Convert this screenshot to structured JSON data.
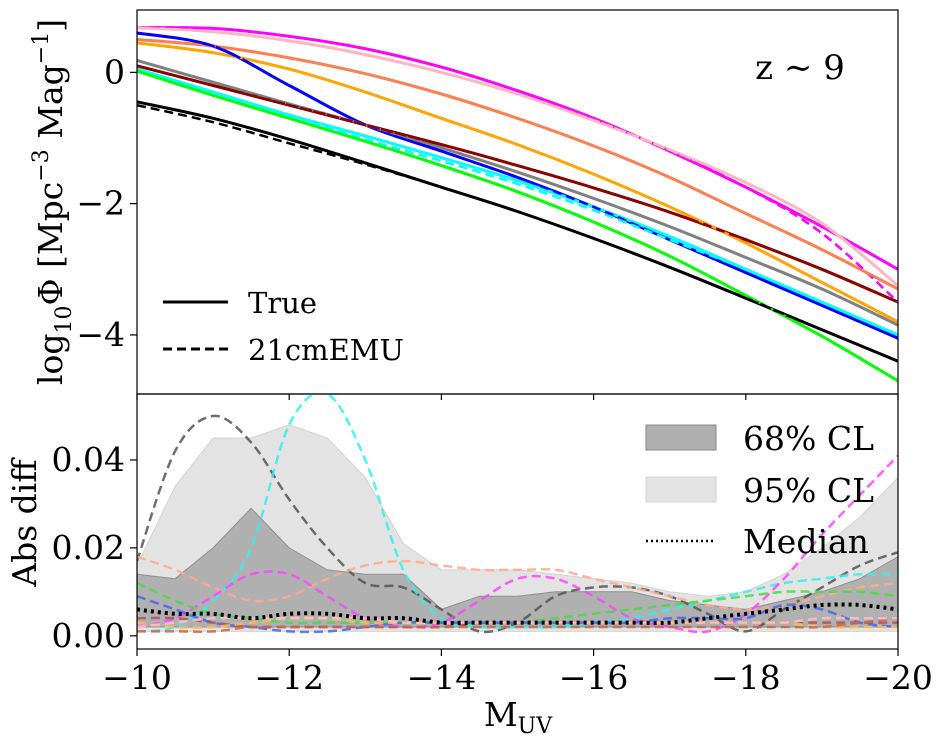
{
  "chart_data": [
    {
      "type": "line",
      "panel": "top",
      "annotation": "z ∼ 9",
      "ylabel": "log$_{10}\\Phi$ [Mpc$^{-3}$ Mag$^{-1}$]",
      "ylabel_parts": {
        "a": "log",
        "a_sub": "10",
        "b": "Φ [Mpc",
        "b_sup": "−3",
        "c": " Mag",
        "c_sup": "−1",
        "d": "]"
      },
      "xlim": [
        -10,
        -20
      ],
      "ylim": [
        -4.9,
        0.95
      ],
      "yticks": [
        0,
        -2,
        -4
      ],
      "ytick_labels": [
        "0",
        "−2",
        "−4"
      ],
      "legend": {
        "location": "lower left",
        "entries": [
          {
            "label": "True",
            "style": "solid"
          },
          {
            "label": "21cmEMU",
            "style": "dashed"
          }
        ]
      },
      "series": [
        {
          "color": "#ff00ff",
          "x": [
            -10,
            -11,
            -12,
            -13,
            -14,
            -15,
            -16,
            -17,
            -18,
            -19,
            -20
          ],
          "true": [
            0.68,
            0.67,
            0.55,
            0.36,
            0.08,
            -0.28,
            -0.7,
            -1.2,
            -1.75,
            -2.35,
            -3.0
          ],
          "emu": [
            0.68,
            0.67,
            0.55,
            0.36,
            0.08,
            -0.28,
            -0.7,
            -1.2,
            -1.75,
            -2.45,
            -3.5
          ]
        },
        {
          "color": "#ffb6c1",
          "x": [
            -10,
            -11,
            -12,
            -13,
            -14,
            -15,
            -16,
            -17,
            -18,
            -19,
            -20
          ],
          "true": [
            0.68,
            0.62,
            0.48,
            0.27,
            0.0,
            -0.33,
            -0.73,
            -1.18,
            -1.68,
            -2.3,
            -3.25
          ],
          "emu": [
            0.68,
            0.62,
            0.48,
            0.27,
            0.0,
            -0.33,
            -0.73,
            -1.18,
            -1.68,
            -2.3,
            -3.25
          ]
        },
        {
          "color": "#ff7f50",
          "x": [
            -10,
            -11,
            -12,
            -13,
            -14,
            -15,
            -16,
            -17,
            -18,
            -19,
            -20
          ],
          "true": [
            0.5,
            0.4,
            0.22,
            -0.02,
            -0.33,
            -0.7,
            -1.12,
            -1.6,
            -2.15,
            -2.7,
            -3.3
          ],
          "emu": [
            0.5,
            0.4,
            0.22,
            -0.02,
            -0.33,
            -0.7,
            -1.12,
            -1.6,
            -2.15,
            -2.7,
            -3.3
          ]
        },
        {
          "color": "#ffa500",
          "x": [
            -10,
            -11,
            -12,
            -13,
            -14,
            -15,
            -16,
            -17,
            -18,
            -19,
            -20
          ],
          "true": [
            0.45,
            0.3,
            0.05,
            -0.3,
            -0.7,
            -1.1,
            -1.55,
            -2.05,
            -2.6,
            -3.2,
            -3.8
          ],
          "emu": [
            0.45,
            0.3,
            0.05,
            -0.3,
            -0.7,
            -1.1,
            -1.55,
            -2.05,
            -2.6,
            -3.2,
            -3.8
          ]
        },
        {
          "color": "#0000ff",
          "x": [
            -10,
            -11,
            -12,
            -13,
            -14,
            -15,
            -16,
            -17,
            -18,
            -19,
            -20
          ],
          "true": [
            0.6,
            0.4,
            -0.2,
            -0.8,
            -1.2,
            -1.6,
            -2.05,
            -2.55,
            -3.05,
            -3.55,
            -4.05
          ],
          "emu": [
            0.6,
            0.4,
            -0.2,
            -0.8,
            -1.2,
            -1.6,
            -2.05,
            -2.55,
            -3.05,
            -3.55,
            -4.05
          ]
        },
        {
          "color": "#00ffff",
          "x": [
            -10,
            -11,
            -12,
            -13,
            -14,
            -15,
            -16,
            -17,
            -18,
            -19,
            -20
          ],
          "true": [
            0.05,
            -0.3,
            -0.65,
            -0.97,
            -1.3,
            -1.65,
            -2.05,
            -2.5,
            -3.0,
            -3.5,
            -4.0
          ],
          "emu": [
            0.05,
            -0.3,
            -0.65,
            -1.02,
            -1.35,
            -1.7,
            -2.1,
            -2.55,
            -3.0,
            -3.5,
            -4.0
          ]
        },
        {
          "color": "#808080",
          "x": [
            -10,
            -11,
            -12,
            -13,
            -14,
            -15,
            -16,
            -17,
            -18,
            -19,
            -20
          ],
          "true": [
            0.18,
            -0.15,
            -0.48,
            -0.8,
            -1.15,
            -1.52,
            -1.92,
            -2.35,
            -2.82,
            -3.3,
            -3.85
          ],
          "emu": [
            0.18,
            -0.15,
            -0.48,
            -0.8,
            -1.15,
            -1.52,
            -1.92,
            -2.35,
            -2.82,
            -3.3,
            -3.85
          ]
        },
        {
          "color": "#8b0000",
          "x": [
            -10,
            -11,
            -12,
            -13,
            -14,
            -15,
            -16,
            -17,
            -18,
            -19,
            -20
          ],
          "true": [
            0.1,
            -0.2,
            -0.5,
            -0.8,
            -1.1,
            -1.42,
            -1.76,
            -2.13,
            -2.55,
            -3.0,
            -3.5
          ],
          "emu": [
            0.1,
            -0.2,
            -0.5,
            -0.8,
            -1.1,
            -1.42,
            -1.76,
            -2.13,
            -2.55,
            -3.0,
            -3.5
          ]
        },
        {
          "color": "#00ff00",
          "x": [
            -10,
            -11,
            -12,
            -13,
            -14,
            -15,
            -16,
            -17,
            -18,
            -19,
            -20
          ],
          "true": [
            0.02,
            -0.35,
            -0.7,
            -1.05,
            -1.42,
            -1.82,
            -2.28,
            -2.8,
            -3.4,
            -4.02,
            -4.7
          ],
          "emu": [
            0.02,
            -0.35,
            -0.7,
            -1.05,
            -1.42,
            -1.82,
            -2.28,
            -2.8,
            -3.4,
            -4.02,
            -4.7
          ]
        },
        {
          "color": "#000000",
          "x": [
            -10,
            -11,
            -12,
            -13,
            -14,
            -15,
            -16,
            -17,
            -18,
            -19,
            -20
          ],
          "true": [
            -0.45,
            -0.7,
            -1.02,
            -1.38,
            -1.75,
            -2.12,
            -2.53,
            -2.97,
            -3.44,
            -3.92,
            -4.4
          ],
          "emu": [
            -0.5,
            -0.76,
            -1.08,
            -1.4,
            -1.75,
            -2.12,
            -2.53,
            -2.97,
            -3.44,
            -3.92,
            -4.4
          ]
        }
      ]
    },
    {
      "type": "line",
      "panel": "bottom",
      "xlabel": "M",
      "xlabel_sub": "UV",
      "ylabel": "Abs diff",
      "xlim": [
        -10,
        -20
      ],
      "ylim": [
        -0.003,
        0.055
      ],
      "xticks": [
        -10,
        -12,
        -14,
        -16,
        -18,
        -20
      ],
      "xtick_labels": [
        "−10",
        "−12",
        "−14",
        "−16",
        "−18",
        "−20"
      ],
      "yticks": [
        0.0,
        0.02,
        0.04
      ],
      "ytick_labels": [
        "0.00",
        "0.02",
        "0.04"
      ],
      "legend": {
        "location": "upper right",
        "entries": [
          {
            "label": "68% CL",
            "color": "#b0b0b0"
          },
          {
            "label": "95% CL",
            "color": "#e3e3e3"
          },
          {
            "label": "Median",
            "style": "dotted"
          }
        ]
      },
      "x": [
        -10,
        -10.5,
        -11,
        -11.5,
        -12,
        -12.5,
        -13,
        -13.5,
        -14,
        -14.5,
        -15,
        -15.5,
        -16,
        -16.5,
        -17,
        -17.5,
        -18,
        -18.5,
        -19,
        -19.5,
        -20
      ],
      "band95": {
        "lower": [
          0.001,
          0.001,
          0.001,
          0.001,
          0.001,
          0.001,
          0.001,
          0.001,
          0.001,
          0.001,
          0.001,
          0.001,
          0.001,
          0.001,
          0.001,
          0.001,
          0.001,
          0.001,
          0.001,
          0.001,
          0.001
        ],
        "upper": [
          0.016,
          0.034,
          0.045,
          0.045,
          0.048,
          0.045,
          0.036,
          0.021,
          0.015,
          0.015,
          0.015,
          0.014,
          0.013,
          0.012,
          0.01,
          0.009,
          0.01,
          0.014,
          0.02,
          0.027,
          0.036
        ]
      },
      "band68": {
        "lower": [
          0.002,
          0.002,
          0.002,
          0.002,
          0.002,
          0.002,
          0.002,
          0.002,
          0.002,
          0.002,
          0.002,
          0.002,
          0.002,
          0.002,
          0.002,
          0.002,
          0.002,
          0.002,
          0.002,
          0.002,
          0.002
        ],
        "upper": [
          0.014,
          0.013,
          0.02,
          0.029,
          0.02,
          0.015,
          0.014,
          0.014,
          0.006,
          0.009,
          0.009,
          0.01,
          0.01,
          0.01,
          0.008,
          0.007,
          0.006,
          0.008,
          0.01,
          0.013,
          0.018
        ]
      },
      "median": [
        0.006,
        0.005,
        0.005,
        0.004,
        0.005,
        0.005,
        0.004,
        0.004,
        0.003,
        0.003,
        0.003,
        0.003,
        0.003,
        0.003,
        0.003,
        0.004,
        0.005,
        0.006,
        0.007,
        0.007,
        0.006
      ],
      "series": [
        {
          "color": "#555555",
          "values": [
            0.017,
            0.042,
            0.05,
            0.044,
            0.031,
            0.02,
            0.012,
            0.011,
            0.006,
            0.001,
            0.003,
            0.009,
            0.011,
            0.011,
            0.009,
            0.005,
            0.001,
            0.006,
            0.011,
            0.016,
            0.019
          ]
        },
        {
          "color": "#33eeee",
          "values": [
            0.001,
            0.002,
            0.008,
            0.02,
            0.048,
            0.055,
            0.04,
            0.015,
            0.004,
            0.002,
            0.002,
            0.002,
            0.003,
            0.004,
            0.006,
            0.008,
            0.01,
            0.012,
            0.013,
            0.014,
            0.014
          ]
        },
        {
          "color": "#ffaa88",
          "values": [
            0.018,
            0.015,
            0.011,
            0.008,
            0.009,
            0.013,
            0.016,
            0.017,
            0.016,
            0.015,
            0.015,
            0.015,
            0.013,
            0.011,
            0.009,
            0.007,
            0.006,
            0.007,
            0.009,
            0.011,
            0.012
          ]
        },
        {
          "color": "#ff44ff",
          "values": [
            0.002,
            0.004,
            0.009,
            0.014,
            0.014,
            0.009,
            0.004,
            0.002,
            0.003,
            0.008,
            0.013,
            0.013,
            0.009,
            0.004,
            0.002,
            0.001,
            0.005,
            0.013,
            0.023,
            0.032,
            0.041
          ]
        },
        {
          "color": "#44dd44",
          "values": [
            0.012,
            0.008,
            0.005,
            0.004,
            0.003,
            0.003,
            0.003,
            0.003,
            0.003,
            0.003,
            0.003,
            0.004,
            0.005,
            0.006,
            0.007,
            0.008,
            0.009,
            0.01,
            0.01,
            0.01,
            0.009
          ]
        },
        {
          "color": "#4466ee",
          "values": [
            0.009,
            0.006,
            0.003,
            0.002,
            0.001,
            0.001,
            0.002,
            0.003,
            0.003,
            0.003,
            0.003,
            0.003,
            0.003,
            0.003,
            0.004,
            0.004,
            0.004,
            0.007,
            0.006,
            0.003,
            0.002
          ]
        },
        {
          "color": "#aa5555",
          "values": [
            0.004,
            0.004,
            0.003,
            0.002,
            0.002,
            0.002,
            0.002,
            0.002,
            0.002,
            0.003,
            0.003,
            0.003,
            0.003,
            0.003,
            0.003,
            0.003,
            0.003,
            0.003,
            0.003,
            0.003,
            0.003
          ]
        },
        {
          "color": "#ffbb55",
          "values": [
            0.003,
            0.002,
            0.002,
            0.003,
            0.004,
            0.004,
            0.003,
            0.003,
            0.003,
            0.003,
            0.003,
            0.003,
            0.003,
            0.003,
            0.003,
            0.003,
            0.003,
            0.003,
            0.002,
            0.002,
            0.002
          ]
        },
        {
          "color": "#cc6644",
          "values": [
            0.001,
            0.001,
            0.001,
            0.002,
            0.002,
            0.002,
            0.002,
            0.002,
            0.002,
            0.002,
            0.002,
            0.002,
            0.002,
            0.002,
            0.002,
            0.002,
            0.002,
            0.002,
            0.002,
            0.003,
            0.004
          ]
        },
        {
          "color": "#ffc0cb",
          "values": [
            0.002,
            0.003,
            0.004,
            0.004,
            0.004,
            0.004,
            0.004,
            0.003,
            0.003,
            0.003,
            0.003,
            0.003,
            0.003,
            0.003,
            0.003,
            0.003,
            0.003,
            0.003,
            0.004,
            0.004,
            0.004
          ]
        }
      ]
    }
  ]
}
